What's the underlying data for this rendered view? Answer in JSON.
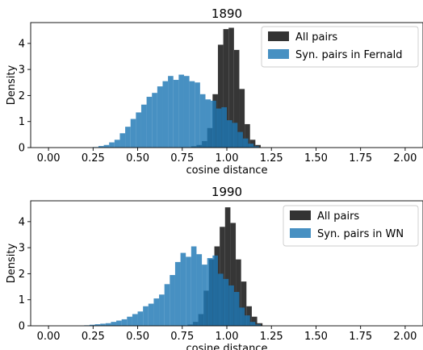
{
  "chart_data": [
    {
      "type": "histogram",
      "title": "1890",
      "xlabel": "cosine distance",
      "ylabel": "Density",
      "xlim": [
        -0.1,
        2.1
      ],
      "ylim": [
        0,
        4.8
      ],
      "x_ticks": [
        "0.00",
        "0.25",
        "0.50",
        "0.75",
        "1.00",
        "1.25",
        "1.50",
        "1.75",
        "2.00"
      ],
      "y_ticks": [
        "0",
        "1",
        "2",
        "3",
        "4"
      ],
      "grid": false,
      "legend_position": "top-right",
      "series": [
        {
          "name": "All pairs",
          "color": "#333333",
          "bins": [
            [
              0.8,
              0.83,
              0.05
            ],
            [
              0.83,
              0.86,
              0.1
            ],
            [
              0.86,
              0.89,
              0.25
            ],
            [
              0.89,
              0.92,
              0.75
            ],
            [
              0.92,
              0.95,
              2.05
            ],
            [
              0.95,
              0.98,
              3.95
            ],
            [
              0.98,
              1.01,
              4.55
            ],
            [
              1.01,
              1.04,
              4.6
            ],
            [
              1.04,
              1.07,
              3.75
            ],
            [
              1.07,
              1.1,
              2.25
            ],
            [
              1.1,
              1.13,
              0.9
            ],
            [
              1.13,
              1.16,
              0.3
            ],
            [
              1.16,
              1.19,
              0.1
            ]
          ]
        },
        {
          "name": "Syn. pairs in Fernald",
          "color": "#1f77b4",
          "bins": [
            [
              0.25,
              0.28,
              0.02
            ],
            [
              0.28,
              0.31,
              0.06
            ],
            [
              0.31,
              0.34,
              0.1
            ],
            [
              0.34,
              0.37,
              0.2
            ],
            [
              0.37,
              0.4,
              0.3
            ],
            [
              0.4,
              0.43,
              0.55
            ],
            [
              0.43,
              0.46,
              0.8
            ],
            [
              0.46,
              0.49,
              1.1
            ],
            [
              0.49,
              0.52,
              1.35
            ],
            [
              0.52,
              0.55,
              1.65
            ],
            [
              0.55,
              0.58,
              1.95
            ],
            [
              0.58,
              0.61,
              2.1
            ],
            [
              0.61,
              0.64,
              2.35
            ],
            [
              0.64,
              0.67,
              2.55
            ],
            [
              0.67,
              0.7,
              2.75
            ],
            [
              0.7,
              0.73,
              2.6
            ],
            [
              0.73,
              0.76,
              2.8
            ],
            [
              0.76,
              0.79,
              2.75
            ],
            [
              0.79,
              0.82,
              2.55
            ],
            [
              0.82,
              0.85,
              2.5
            ],
            [
              0.85,
              0.88,
              2.05
            ],
            [
              0.88,
              0.91,
              1.85
            ],
            [
              0.91,
              0.94,
              1.8
            ],
            [
              0.94,
              0.97,
              1.5
            ],
            [
              0.97,
              1.0,
              1.55
            ],
            [
              1.0,
              1.03,
              1.05
            ],
            [
              1.03,
              1.06,
              0.95
            ],
            [
              1.06,
              1.09,
              0.6
            ],
            [
              1.09,
              1.12,
              0.35
            ],
            [
              1.12,
              1.15,
              0.15
            ],
            [
              1.15,
              1.18,
              0.05
            ]
          ]
        }
      ]
    },
    {
      "type": "histogram",
      "title": "1990",
      "xlabel": "cosine distance",
      "ylabel": "Density",
      "xlim": [
        -0.1,
        2.1
      ],
      "ylim": [
        0,
        4.8
      ],
      "x_ticks": [
        "0.00",
        "0.25",
        "0.50",
        "0.75",
        "1.00",
        "1.25",
        "1.50",
        "1.75",
        "2.00"
      ],
      "y_ticks": [
        "0",
        "1",
        "2",
        "3",
        "4"
      ],
      "grid": false,
      "legend_position": "top-right",
      "series": [
        {
          "name": "All pairs",
          "color": "#333333",
          "bins": [
            [
              0.78,
              0.81,
              0.05
            ],
            [
              0.81,
              0.84,
              0.15
            ],
            [
              0.84,
              0.87,
              0.45
            ],
            [
              0.87,
              0.9,
              1.35
            ],
            [
              0.9,
              0.93,
              2.55
            ],
            [
              0.93,
              0.96,
              3.05
            ],
            [
              0.96,
              0.99,
              3.8
            ],
            [
              0.99,
              1.02,
              4.55
            ],
            [
              1.02,
              1.05,
              3.95
            ],
            [
              1.05,
              1.08,
              2.55
            ],
            [
              1.08,
              1.11,
              1.7
            ],
            [
              1.11,
              1.14,
              0.75
            ],
            [
              1.14,
              1.17,
              0.35
            ],
            [
              1.17,
              1.2,
              0.1
            ]
          ]
        },
        {
          "name": "Syn. pairs in WN",
          "color": "#1f77b4",
          "bins": [
            [
              0.2,
              0.23,
              0.02
            ],
            [
              0.23,
              0.26,
              0.04
            ],
            [
              0.26,
              0.29,
              0.06
            ],
            [
              0.29,
              0.32,
              0.08
            ],
            [
              0.32,
              0.35,
              0.1
            ],
            [
              0.35,
              0.38,
              0.15
            ],
            [
              0.38,
              0.41,
              0.2
            ],
            [
              0.41,
              0.44,
              0.25
            ],
            [
              0.44,
              0.47,
              0.35
            ],
            [
              0.47,
              0.5,
              0.45
            ],
            [
              0.5,
              0.53,
              0.55
            ],
            [
              0.53,
              0.56,
              0.75
            ],
            [
              0.56,
              0.59,
              0.85
            ],
            [
              0.59,
              0.62,
              1.05
            ],
            [
              0.62,
              0.65,
              1.2
            ],
            [
              0.65,
              0.68,
              1.6
            ],
            [
              0.68,
              0.71,
              1.95
            ],
            [
              0.71,
              0.74,
              2.45
            ],
            [
              0.74,
              0.77,
              2.8
            ],
            [
              0.77,
              0.8,
              2.65
            ],
            [
              0.8,
              0.83,
              3.05
            ],
            [
              0.83,
              0.86,
              2.75
            ],
            [
              0.86,
              0.89,
              2.35
            ],
            [
              0.89,
              0.92,
              2.6
            ],
            [
              0.92,
              0.95,
              2.7
            ],
            [
              0.95,
              0.98,
              2.0
            ],
            [
              0.98,
              1.01,
              1.8
            ],
            [
              1.01,
              1.04,
              1.55
            ],
            [
              1.04,
              1.07,
              1.3
            ],
            [
              1.07,
              1.1,
              0.7
            ],
            [
              1.1,
              1.13,
              0.4
            ],
            [
              1.13,
              1.16,
              0.15
            ],
            [
              1.16,
              1.19,
              0.05
            ]
          ]
        }
      ]
    }
  ]
}
